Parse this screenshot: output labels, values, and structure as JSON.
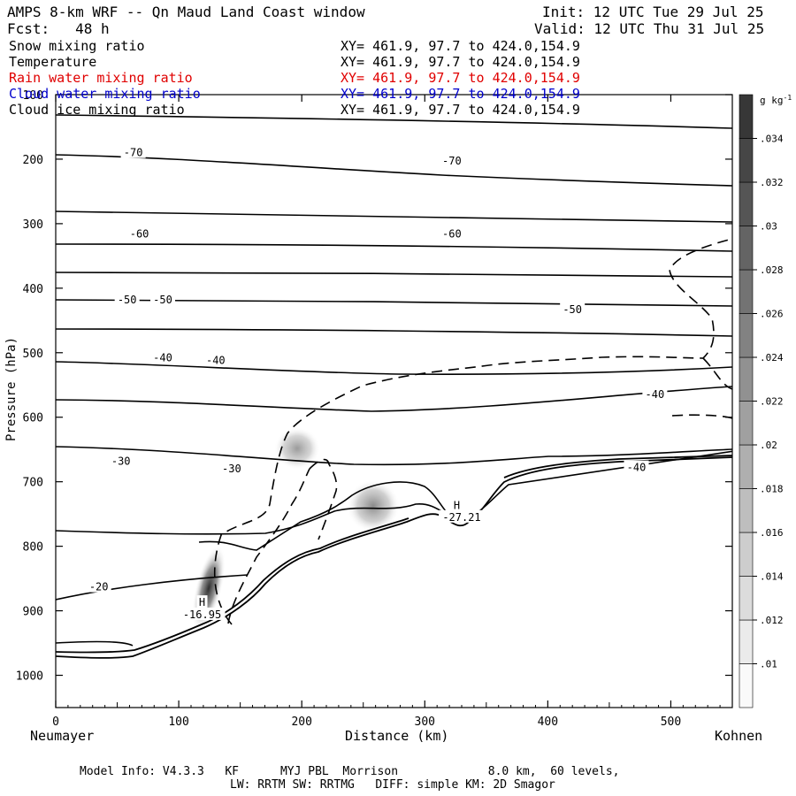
{
  "header": {
    "title": "AMPS 8-km WRF -- Qn Maud Land Coast window",
    "init": "Init: 12 UTC Tue 29 Jul 25",
    "fcst": "Fcst:   48 h",
    "valid": "Valid: 12 UTC Thu 31 Jul 25"
  },
  "fields": [
    {
      "name": "Snow mixing ratio",
      "xy": "XY= 461.9, 97.7 to 424.0,154.9",
      "color": "#000000"
    },
    {
      "name": "Temperature",
      "xy": "XY= 461.9, 97.7 to 424.0,154.9",
      "color": "#000000"
    },
    {
      "name": "Rain water mixing ratio",
      "xy": "XY= 461.9, 97.7 to 424.0,154.9",
      "color": "#e00000"
    },
    {
      "name": "Cloud water mixing ratio",
      "xy": "XY= 461.9, 97.7 to 424.0,154.9",
      "color": "#0000cc"
    },
    {
      "name": "Cloud ice mixing ratio",
      "xy": "XY= 461.9, 97.7 to 424.0,154.9",
      "color": "#000000"
    }
  ],
  "axes": {
    "ylabel": "Pressure (hPa)",
    "xlabel": "Distance (km)",
    "left_station": "Neumayer",
    "right_station": "Kohnen"
  },
  "footer": {
    "line1": "Model Info: V4.3.3   KF      MYJ PBL  Morrison             8.0 km,  60 levels,",
    "line2": "LW: RRTM SW: RRTMG   DIFF: simple KM: 2D Smagor"
  },
  "chart_data": {
    "type": "contour",
    "x": {
      "range": [
        0,
        550
      ],
      "ticks": [
        0,
        100,
        200,
        300,
        400,
        500
      ],
      "unit": "km"
    },
    "y": {
      "range": [
        1050,
        100
      ],
      "ticks": [
        100,
        200,
        300,
        400,
        500,
        600,
        700,
        800,
        900,
        1000
      ],
      "unit": "hPa",
      "inverted": true
    },
    "colorbar": {
      "label": "g kg",
      "label_sup": "-1",
      "ticks": [
        ".01",
        ".012",
        ".014",
        ".016",
        ".018",
        ".02",
        ".022",
        ".024",
        ".026",
        ".028",
        ".03",
        ".032",
        ".034"
      ],
      "range": [
        0.009,
        0.036
      ]
    },
    "temperature_labels": [
      {
        "text": "-70",
        "x": 63,
        "p": 190
      },
      {
        "text": "-70",
        "x": 322,
        "p": 203
      },
      {
        "text": "-60",
        "x": 68,
        "p": 316
      },
      {
        "text": "-60",
        "x": 322,
        "p": 316
      },
      {
        "text": "-50",
        "x": 58,
        "p": 418
      },
      {
        "text": "-50",
        "x": 87,
        "p": 418
      },
      {
        "text": "-50",
        "x": 420,
        "p": 433
      },
      {
        "text": "-40",
        "x": 87,
        "p": 508
      },
      {
        "text": "-40",
        "x": 130,
        "p": 512
      },
      {
        "text": "-40",
        "x": 487,
        "p": 565
      },
      {
        "text": "-40",
        "x": 472,
        "p": 678
      },
      {
        "text": "-30",
        "x": 53,
        "p": 668
      },
      {
        "text": "-30",
        "x": 143,
        "p": 680
      },
      {
        "text": "-20",
        "x": 35,
        "p": 863
      },
      {
        "text": "H",
        "x": 119,
        "p": 887
      },
      {
        "text": "-16.95",
        "x": 119,
        "p": 906
      },
      {
        "text": "H",
        "x": 326,
        "p": 737
      },
      {
        "text": "-27.21",
        "x": 330,
        "p": 755
      }
    ],
    "shaded_maxima": [
      {
        "x": 195,
        "p": 650,
        "value": 0.017
      },
      {
        "x": 258,
        "p": 740,
        "value": 0.022
      },
      {
        "x": 123,
        "p": 870,
        "value": 0.033
      }
    ]
  }
}
